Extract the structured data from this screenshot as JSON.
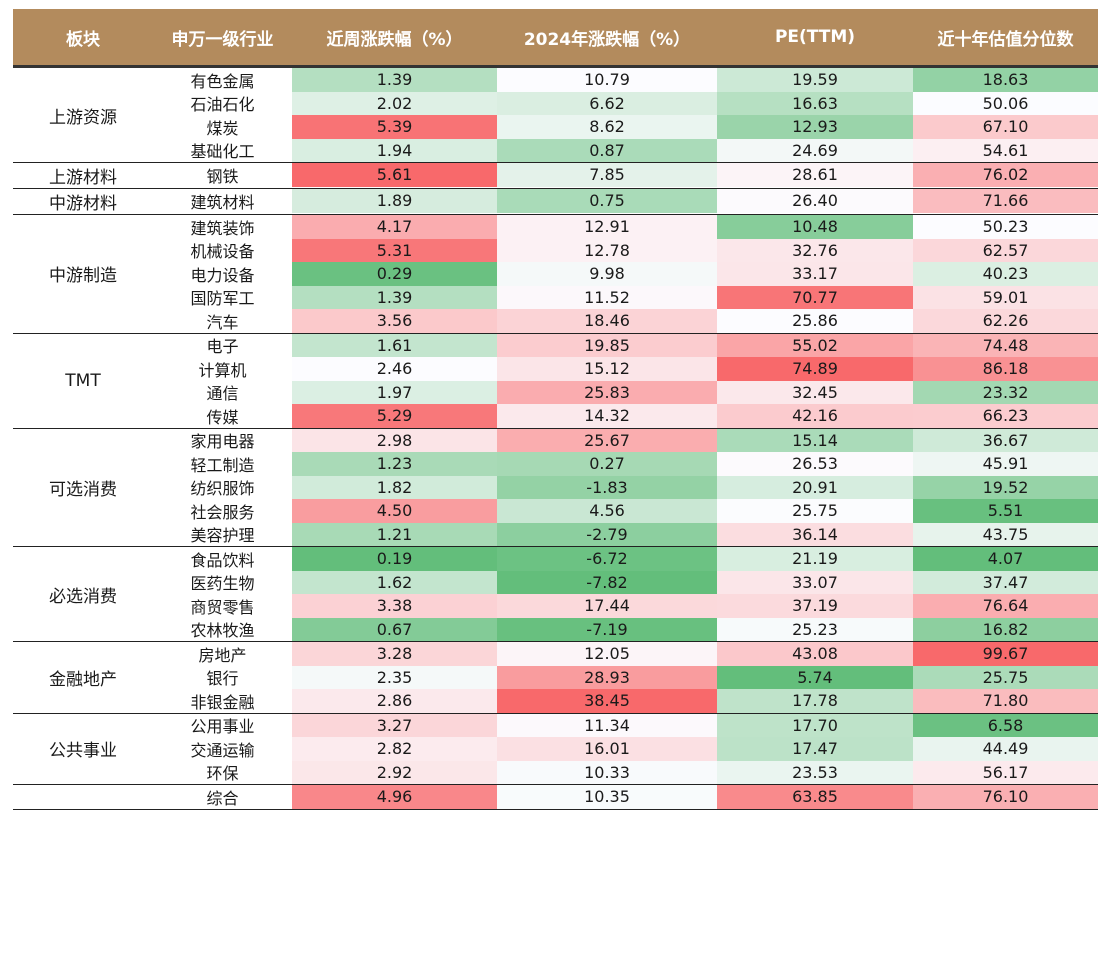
{
  "headers": [
    "板块",
    "申万一级行业",
    "近周涨跌幅（%）",
    "2024年涨跌幅（%）",
    "PE(TTM)",
    "近十年估值分位数"
  ],
  "groups": [
    {
      "name": "上游资源",
      "rows": [
        {
          "industry": "有色金属",
          "values": [
            "1.39",
            "10.79",
            "19.59",
            "18.63"
          ]
        },
        {
          "industry": "石油石化",
          "values": [
            "2.02",
            "6.62",
            "16.63",
            "50.06"
          ]
        },
        {
          "industry": "煤炭",
          "values": [
            "5.39",
            "8.62",
            "12.93",
            "67.10"
          ]
        },
        {
          "industry": "基础化工",
          "values": [
            "1.94",
            "0.87",
            "24.69",
            "54.61"
          ]
        }
      ]
    },
    {
      "name": "上游材料",
      "rows": [
        {
          "industry": "钢铁",
          "values": [
            "5.61",
            "7.85",
            "28.61",
            "76.02"
          ]
        }
      ]
    },
    {
      "name": "中游材料",
      "rows": [
        {
          "industry": "建筑材料",
          "values": [
            "1.89",
            "0.75",
            "26.40",
            "71.66"
          ]
        }
      ]
    },
    {
      "name": "中游制造",
      "rows": [
        {
          "industry": "建筑装饰",
          "values": [
            "4.17",
            "12.91",
            "10.48",
            "50.23"
          ]
        },
        {
          "industry": "机械设备",
          "values": [
            "5.31",
            "12.78",
            "32.76",
            "62.57"
          ]
        },
        {
          "industry": "电力设备",
          "values": [
            "0.29",
            "9.98",
            "33.17",
            "40.23"
          ]
        },
        {
          "industry": "国防军工",
          "values": [
            "1.39",
            "11.52",
            "70.77",
            "59.01"
          ]
        },
        {
          "industry": "汽车",
          "values": [
            "3.56",
            "18.46",
            "25.86",
            "62.26"
          ]
        }
      ]
    },
    {
      "name": "TMT",
      "rows": [
        {
          "industry": "电子",
          "values": [
            "1.61",
            "19.85",
            "55.02",
            "74.48"
          ]
        },
        {
          "industry": "计算机",
          "values": [
            "2.46",
            "15.12",
            "74.89",
            "86.18"
          ]
        },
        {
          "industry": "通信",
          "values": [
            "1.97",
            "25.83",
            "32.45",
            "23.32"
          ]
        },
        {
          "industry": "传媒",
          "values": [
            "5.29",
            "14.32",
            "42.16",
            "66.23"
          ]
        }
      ]
    },
    {
      "name": "可选消费",
      "rows": [
        {
          "industry": "家用电器",
          "values": [
            "2.98",
            "25.67",
            "15.14",
            "36.67"
          ]
        },
        {
          "industry": "轻工制造",
          "values": [
            "1.23",
            "0.27",
            "26.53",
            "45.91"
          ]
        },
        {
          "industry": "纺织服饰",
          "values": [
            "1.82",
            "-1.83",
            "20.91",
            "19.52"
          ]
        },
        {
          "industry": "社会服务",
          "values": [
            "4.50",
            "4.56",
            "25.75",
            "5.51"
          ]
        },
        {
          "industry": "美容护理",
          "values": [
            "1.21",
            "-2.79",
            "36.14",
            "43.75"
          ]
        }
      ]
    },
    {
      "name": "必选消费",
      "rows": [
        {
          "industry": "食品饮料",
          "values": [
            "0.19",
            "-6.72",
            "21.19",
            "4.07"
          ]
        },
        {
          "industry": "医药生物",
          "values": [
            "1.62",
            "-7.82",
            "33.07",
            "37.47"
          ]
        },
        {
          "industry": "商贸零售",
          "values": [
            "3.38",
            "17.44",
            "37.19",
            "76.64"
          ]
        },
        {
          "industry": "农林牧渔",
          "values": [
            "0.67",
            "-7.19",
            "25.23",
            "16.82"
          ]
        }
      ]
    },
    {
      "name": "金融地产",
      "rows": [
        {
          "industry": "房地产",
          "values": [
            "3.28",
            "12.05",
            "43.08",
            "99.67"
          ]
        },
        {
          "industry": "银行",
          "values": [
            "2.35",
            "28.93",
            "5.74",
            "25.75"
          ]
        },
        {
          "industry": "非银金融",
          "values": [
            "2.86",
            "38.45",
            "17.78",
            "71.80"
          ]
        }
      ]
    },
    {
      "name": "公共事业",
      "rows": [
        {
          "industry": "公用事业",
          "values": [
            "3.27",
            "11.34",
            "17.70",
            "6.58"
          ]
        },
        {
          "industry": "交通运输",
          "values": [
            "2.82",
            "16.01",
            "17.47",
            "44.49"
          ]
        },
        {
          "industry": "环保",
          "values": [
            "2.92",
            "10.33",
            "23.53",
            "56.17"
          ]
        }
      ]
    },
    {
      "name": "",
      "rows": [
        {
          "industry": "综合",
          "values": [
            "4.96",
            "10.35",
            "63.85",
            "76.10"
          ]
        }
      ]
    }
  ],
  "colors": {
    "header_bg": "#b38b5d",
    "low": "#63be7b",
    "mid": "#fcfcff",
    "high": "#f8696b"
  }
}
